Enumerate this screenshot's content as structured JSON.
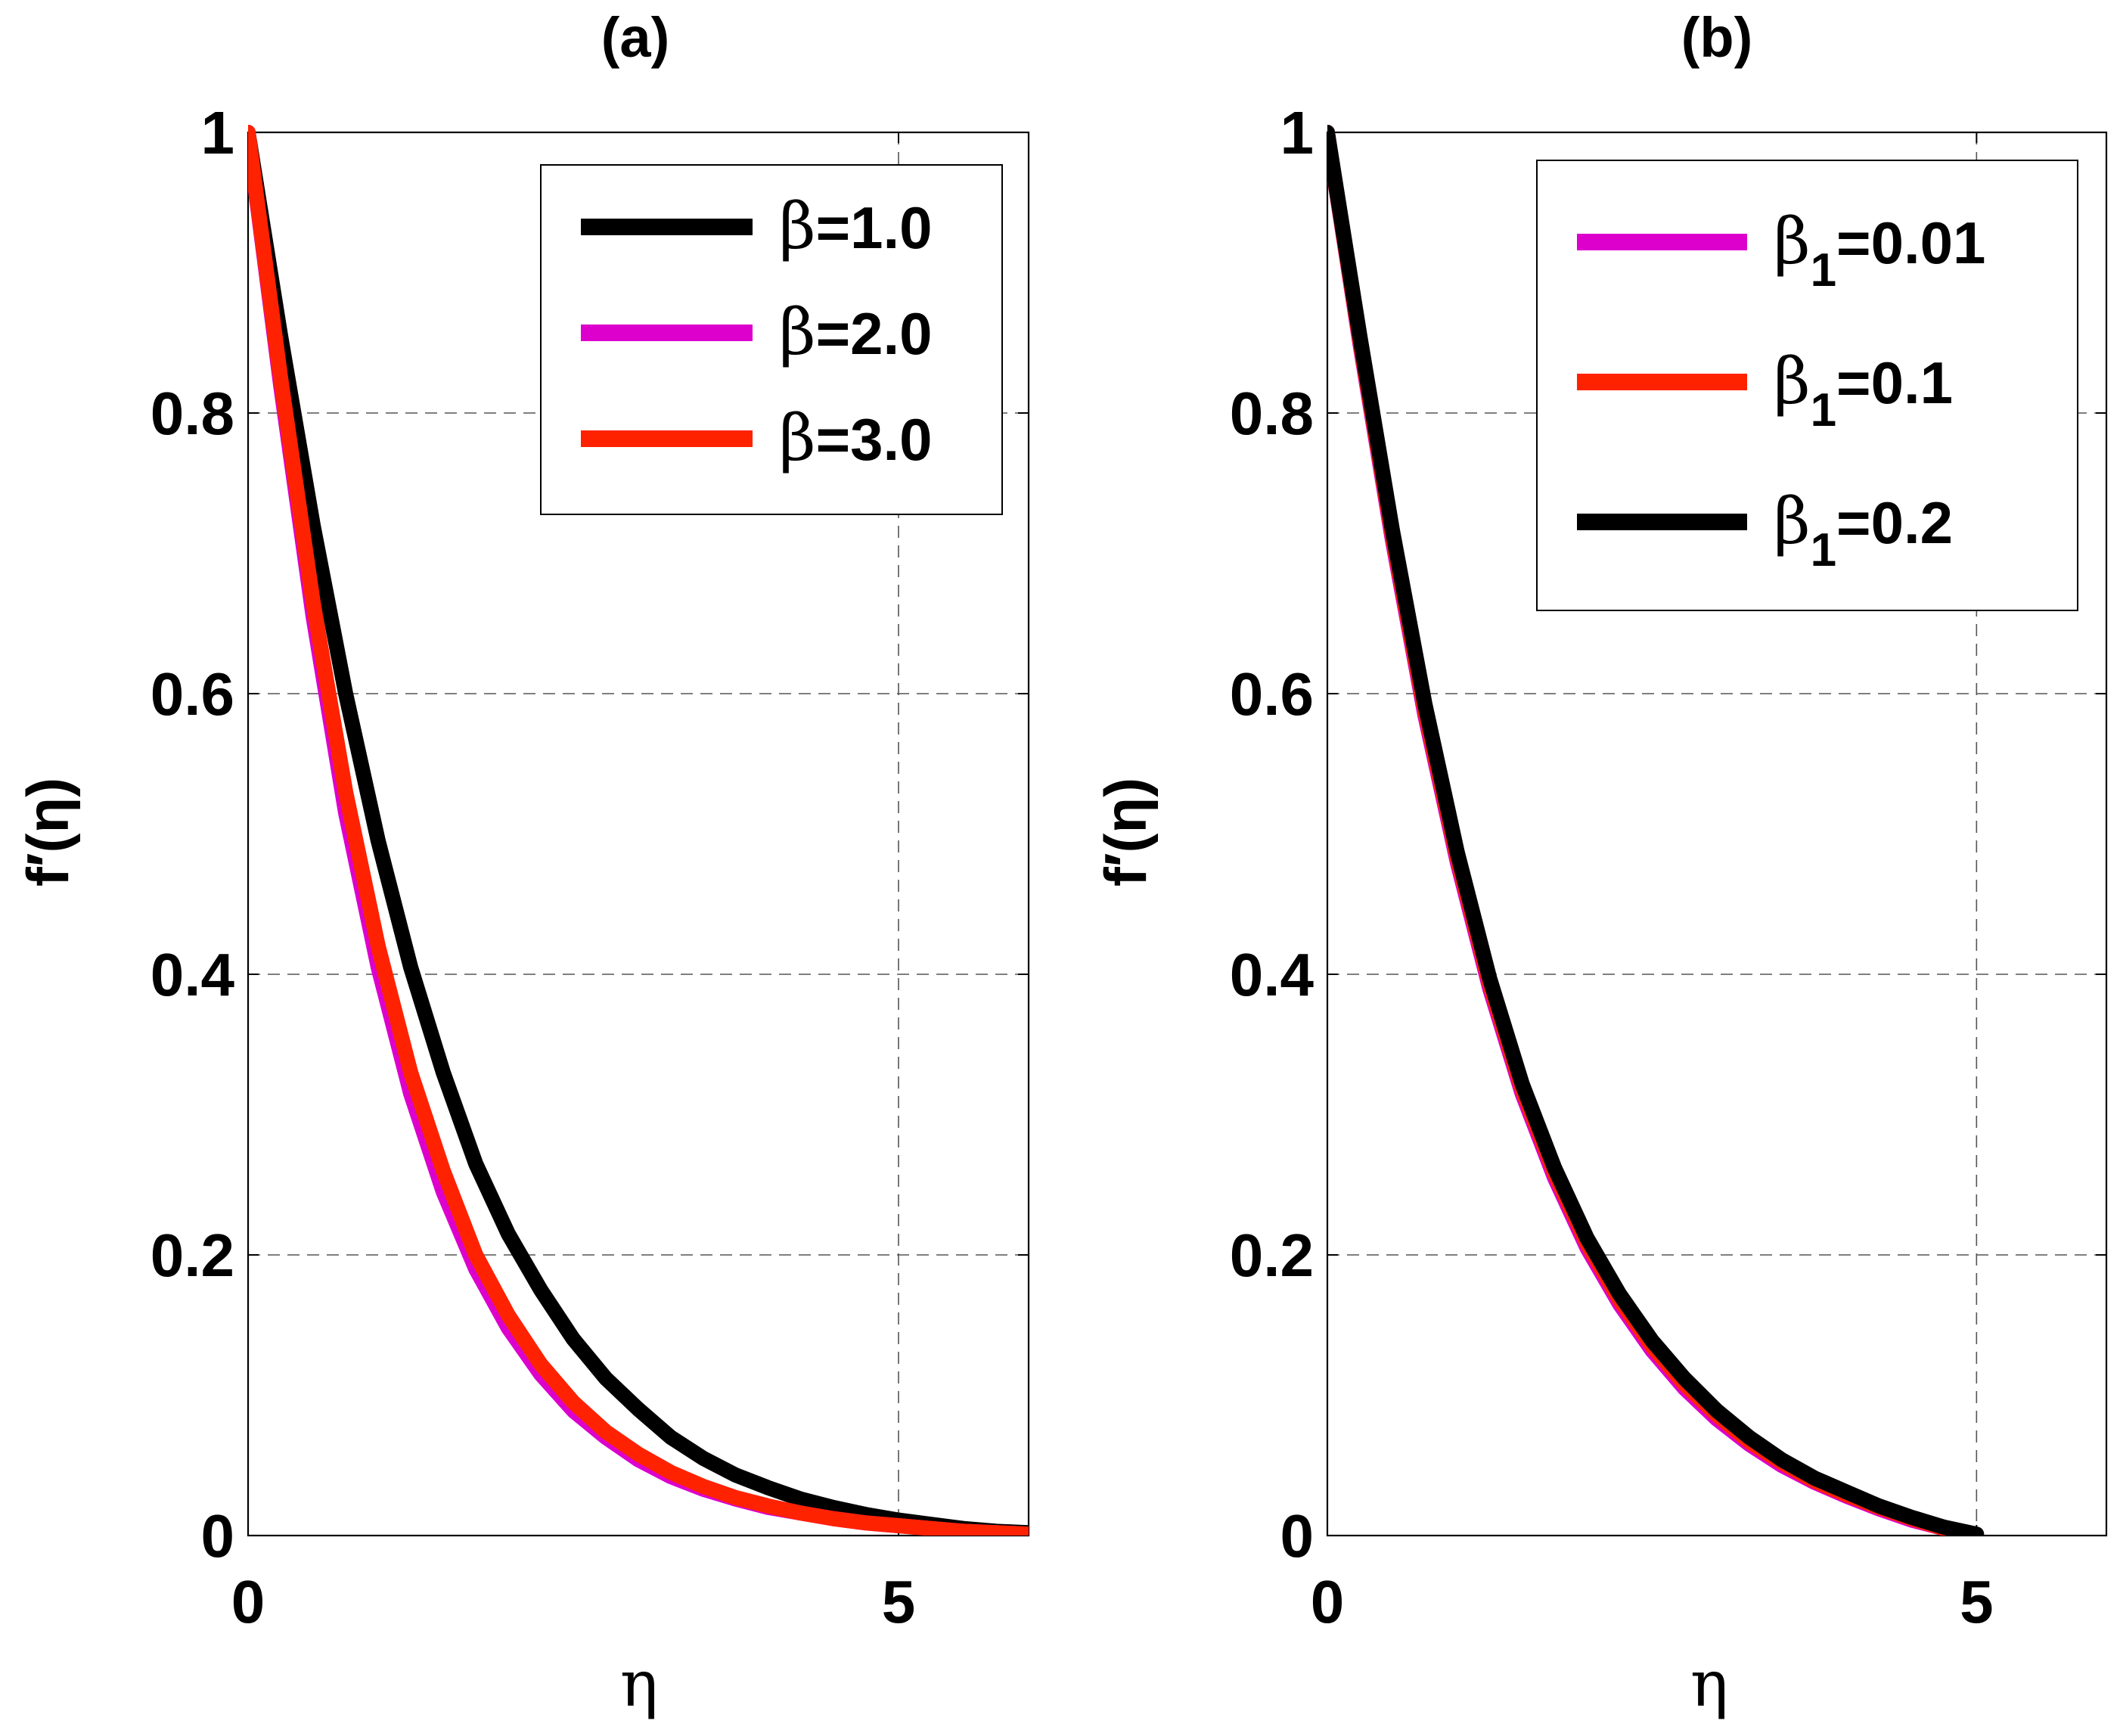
{
  "colors": {
    "black": "#000000",
    "magenta": "#DD00CC",
    "red": "#FF2200"
  },
  "chart_data": [
    {
      "type": "line",
      "panel_title": "(a)",
      "xlabel": "η",
      "ylabel": "f′(η)",
      "xlim": [
        0,
        6
      ],
      "ylim": [
        0,
        1
      ],
      "x_ticks": [
        "0",
        "5"
      ],
      "y_ticks": [
        "0",
        "0.2",
        "0.4",
        "0.6",
        "0.8",
        "1"
      ],
      "grid": true,
      "legend_position": "top-right",
      "series": [
        {
          "name": "β=1.0",
          "legend_prefix": "β",
          "legend_subscript": "",
          "legend_suffix": "=1.0",
          "color": "#000000",
          "x": [
            0,
            0.25,
            0.5,
            0.75,
            1.0,
            1.25,
            1.5,
            1.75,
            2.0,
            2.25,
            2.5,
            2.75,
            3.0,
            3.25,
            3.5,
            3.75,
            4.0,
            4.25,
            4.5,
            4.75,
            5.0,
            5.25,
            5.5,
            5.75,
            6.0
          ],
          "y": [
            1,
            0.855,
            0.72,
            0.6,
            0.495,
            0.405,
            0.33,
            0.265,
            0.215,
            0.175,
            0.14,
            0.112,
            0.09,
            0.07,
            0.055,
            0.043,
            0.034,
            0.026,
            0.02,
            0.015,
            0.011,
            0.008,
            0.005,
            0.003,
            0.002
          ]
        },
        {
          "name": "β=2.0",
          "legend_prefix": "β",
          "legend_subscript": "",
          "legend_suffix": "=2.0",
          "color": "#DD00CC",
          "x": [
            0,
            0.25,
            0.5,
            0.75,
            1.0,
            1.25,
            1.5,
            1.75,
            2.0,
            2.25,
            2.5,
            2.75,
            3.0,
            3.25,
            3.5,
            3.75,
            4.0,
            4.25,
            4.5,
            4.75,
            5.0,
            5.25,
            5.5,
            5.75,
            6.0
          ],
          "y": [
            1,
            0.82,
            0.655,
            0.515,
            0.405,
            0.315,
            0.245,
            0.19,
            0.148,
            0.115,
            0.089,
            0.07,
            0.054,
            0.042,
            0.033,
            0.026,
            0.02,
            0.016,
            0.012,
            0.009,
            0.007,
            0.005,
            0.003,
            0.002,
            0.001
          ]
        },
        {
          "name": "β=3.0",
          "legend_prefix": "β",
          "legend_subscript": "",
          "legend_suffix": "=3.0",
          "color": "#FF2200",
          "x": [
            0,
            0.25,
            0.5,
            0.75,
            1.0,
            1.25,
            1.5,
            1.75,
            2.0,
            2.25,
            2.5,
            2.75,
            3.0,
            3.25,
            3.5,
            3.75,
            4.0,
            4.25,
            4.5,
            4.75,
            5.0,
            5.25,
            5.5,
            5.75,
            6.0
          ],
          "y": [
            1,
            0.825,
            0.665,
            0.53,
            0.42,
            0.33,
            0.26,
            0.2,
            0.157,
            0.122,
            0.095,
            0.074,
            0.058,
            0.045,
            0.035,
            0.027,
            0.021,
            0.016,
            0.012,
            0.009,
            0.007,
            0.005,
            0.003,
            0.002,
            0.001
          ]
        }
      ]
    },
    {
      "type": "line",
      "panel_title": "(b)",
      "xlabel": "η",
      "ylabel": "f′(η)",
      "xlim": [
        0,
        6
      ],
      "ylim": [
        0,
        1
      ],
      "x_ticks": [
        "0",
        "5"
      ],
      "y_ticks": [
        "0",
        "0.2",
        "0.4",
        "0.6",
        "0.8",
        "1"
      ],
      "grid": true,
      "legend_position": "top-right",
      "series": [
        {
          "name": "β1=0.01",
          "legend_prefix": "β",
          "legend_subscript": "1",
          "legend_suffix": "=0.01",
          "color": "#DD00CC",
          "x": [
            0,
            0.25,
            0.5,
            0.75,
            1.0,
            1.25,
            1.5,
            1.75,
            2.0,
            2.25,
            2.5,
            2.75,
            3.0,
            3.25,
            3.5,
            3.75,
            4.0,
            4.25,
            4.5,
            4.75,
            5.0
          ],
          "y": [
            1,
            0.85,
            0.71,
            0.585,
            0.48,
            0.39,
            0.315,
            0.255,
            0.205,
            0.165,
            0.132,
            0.105,
            0.083,
            0.065,
            0.05,
            0.038,
            0.028,
            0.019,
            0.011,
            0.005,
            0
          ]
        },
        {
          "name": "β1=0.1",
          "legend_prefix": "β",
          "legend_subscript": "1",
          "legend_suffix": "=0.1",
          "color": "#FF2200",
          "x": [
            0,
            0.25,
            0.5,
            0.75,
            1.0,
            1.25,
            1.5,
            1.75,
            2.0,
            2.25,
            2.5,
            2.75,
            3.0,
            3.25,
            3.5,
            3.75,
            4.0,
            4.25,
            4.5,
            4.75,
            5.0
          ],
          "y": [
            1,
            0.852,
            0.713,
            0.588,
            0.483,
            0.393,
            0.318,
            0.258,
            0.208,
            0.168,
            0.135,
            0.108,
            0.086,
            0.067,
            0.052,
            0.039,
            0.029,
            0.02,
            0.012,
            0.005,
            0
          ]
        },
        {
          "name": "β1=0.2",
          "legend_prefix": "β",
          "legend_subscript": "1",
          "legend_suffix": "=0.2",
          "color": "#000000",
          "x": [
            0,
            0.25,
            0.5,
            0.75,
            1.0,
            1.25,
            1.5,
            1.75,
            2.0,
            2.25,
            2.5,
            2.75,
            3.0,
            3.25,
            3.5,
            3.75,
            4.0,
            4.25,
            4.5,
            4.75,
            5.0
          ],
          "y": [
            1,
            0.855,
            0.717,
            0.593,
            0.487,
            0.397,
            0.322,
            0.262,
            0.212,
            0.172,
            0.139,
            0.112,
            0.089,
            0.07,
            0.054,
            0.041,
            0.031,
            0.021,
            0.013,
            0.006,
            0.001
          ]
        }
      ]
    }
  ]
}
